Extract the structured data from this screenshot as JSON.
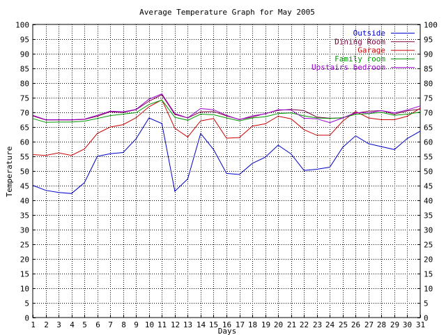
{
  "chart_data": {
    "type": "line",
    "title": "Average Temperature Graph for May 2005",
    "xlabel": "Days",
    "ylabel": "Temperature",
    "x": [
      1,
      2,
      3,
      4,
      5,
      6,
      7,
      8,
      9,
      10,
      11,
      12,
      13,
      14,
      15,
      16,
      17,
      18,
      19,
      20,
      21,
      22,
      23,
      24,
      25,
      26,
      27,
      28,
      29,
      30,
      31
    ],
    "xlim": [
      1,
      31
    ],
    "ylim": [
      0,
      100
    ],
    "y_ticks": [
      0,
      5,
      10,
      15,
      20,
      25,
      30,
      35,
      40,
      45,
      50,
      55,
      60,
      65,
      70,
      75,
      80,
      85,
      90,
      95,
      100
    ],
    "grid": true,
    "right_axis_labels": true,
    "legend_position": "top-right",
    "series": [
      {
        "name": "Outside",
        "color": "#0000cc",
        "values": [
          45.1,
          43.4,
          42.7,
          42.3,
          46.0,
          55.0,
          55.9,
          56.3,
          61.0,
          68.1,
          66.2,
          43.1,
          47.3,
          62.8,
          57.3,
          49.2,
          48.8,
          52.6,
          54.7,
          58.8,
          55.8,
          50.2,
          50.6,
          51.3,
          58.1,
          62.0,
          59.3,
          58.3,
          57.3,
          61.1,
          63.6
        ]
      },
      {
        "name": "Dining Room",
        "color": "#800040",
        "values": [
          68.8,
          67.4,
          67.4,
          67.4,
          67.6,
          68.7,
          70.2,
          70.0,
          70.9,
          73.8,
          76.0,
          69.3,
          68.1,
          70.2,
          70.3,
          68.8,
          67.6,
          68.4,
          69.6,
          70.7,
          71.0,
          70.6,
          68.4,
          68.0,
          68.1,
          69.7,
          70.4,
          70.6,
          69.4,
          70.5,
          71.1
        ]
      },
      {
        "name": "Garage",
        "color": "#cc0000",
        "values": [
          55.6,
          55.3,
          56.2,
          55.3,
          57.5,
          62.8,
          65.0,
          65.8,
          68.2,
          71.9,
          74.3,
          64.6,
          61.6,
          67.1,
          67.9,
          61.2,
          61.4,
          65.3,
          66.1,
          68.7,
          67.8,
          64.1,
          62.2,
          62.2,
          67.0,
          70.3,
          68.1,
          67.5,
          67.5,
          68.7,
          71.4
        ]
      },
      {
        "name": "Family room",
        "color": "#009900",
        "values": [
          67.9,
          66.6,
          66.7,
          66.7,
          67.0,
          67.9,
          68.9,
          69.4,
          69.9,
          72.7,
          74.2,
          68.3,
          67.3,
          69.4,
          69.2,
          68.1,
          67.1,
          68.1,
          68.5,
          69.6,
          69.8,
          68.8,
          68.1,
          67.9,
          68.2,
          69.3,
          69.6,
          70.0,
          69.0,
          69.4,
          70.1
        ]
      },
      {
        "name": "Upstairs bedroom",
        "color": "#9900cc",
        "values": [
          69.0,
          67.5,
          67.5,
          67.5,
          67.7,
          69.0,
          70.4,
          70.2,
          71.0,
          74.5,
          76.3,
          69.6,
          68.1,
          71.3,
          70.9,
          69.0,
          67.5,
          68.8,
          69.5,
          70.9,
          70.8,
          68.0,
          67.8,
          66.5,
          68.1,
          69.9,
          69.8,
          70.6,
          69.8,
          70.8,
          72.2
        ]
      }
    ]
  }
}
